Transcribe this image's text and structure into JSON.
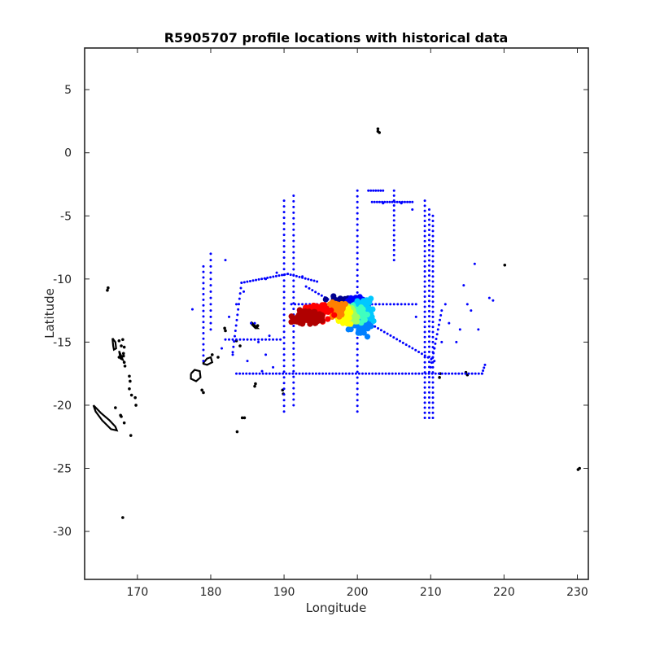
{
  "chart_data": {
    "type": "scatter",
    "title": "R5905707 profile locations with historical data",
    "xlabel": "Longitude",
    "ylabel": "Latitude",
    "xlim": [
      162.8,
      231.5
    ],
    "ylim": [
      -33.8,
      8.3
    ],
    "xticks": [
      170,
      180,
      190,
      200,
      210,
      220,
      230
    ],
    "yticks": [
      5,
      0,
      -5,
      -10,
      -15,
      -20,
      -25,
      -30
    ],
    "grid": false,
    "colors": {
      "historical": "#0000ff",
      "coastline": "#000000"
    },
    "historical_segments": [
      {
        "from": [
          190.0,
          -3.8
        ],
        "to": [
          190.0,
          -20.5
        ],
        "step": 0.45
      },
      {
        "from": [
          191.3,
          -3.4
        ],
        "to": [
          191.3,
          -20.0
        ],
        "step": 0.45
      },
      {
        "from": [
          200.0,
          -3.0
        ],
        "to": [
          200.0,
          -20.5
        ],
        "step": 0.45
      },
      {
        "from": [
          209.2,
          -3.8
        ],
        "to": [
          209.2,
          -21.0
        ],
        "step": 0.4
      },
      {
        "from": [
          209.8,
          -4.5
        ],
        "to": [
          209.8,
          -21.0
        ],
        "step": 0.4
      },
      {
        "from": [
          210.3,
          -5.0
        ],
        "to": [
          210.3,
          -21.0
        ],
        "step": 0.4
      },
      {
        "from": [
          183.5,
          -17.5
        ],
        "to": [
          217.0,
          -17.5
        ],
        "step": 0.45
      },
      {
        "from": [
          217.0,
          -17.5
        ],
        "to": [
          217.4,
          -16.8
        ],
        "step": 0.3
      },
      {
        "from": [
          191.0,
          -12.0
        ],
        "to": [
          208.0,
          -12.0
        ],
        "step": 0.5
      },
      {
        "from": [
          193.0,
          -10.6
        ],
        "to": [
          210.5,
          -16.5
        ],
        "step": 0.45
      },
      {
        "from": [
          184.2,
          -10.3
        ],
        "to": [
          190.5,
          -9.6
        ],
        "step": 0.4
      },
      {
        "from": [
          190.5,
          -9.6
        ],
        "to": [
          194.5,
          -10.2
        ],
        "step": 0.4
      },
      {
        "from": [
          184.2,
          -10.3
        ],
        "to": [
          183.0,
          -15.8
        ],
        "step": 0.45
      },
      {
        "from": [
          182.0,
          -14.8
        ],
        "to": [
          189.5,
          -14.8
        ],
        "step": 0.5
      },
      {
        "from": [
          179.0,
          -9.0
        ],
        "to": [
          179.0,
          -16.5
        ],
        "step": 0.45
      },
      {
        "from": [
          180.0,
          -8.0
        ],
        "to": [
          180.0,
          -14.0
        ],
        "step": 0.5
      },
      {
        "from": [
          201.5,
          -3.0
        ],
        "to": [
          203.5,
          -3.0
        ],
        "step": 0.35
      },
      {
        "from": [
          202.0,
          -3.9
        ],
        "to": [
          207.5,
          -3.9
        ],
        "step": 0.35
      },
      {
        "from": [
          205.0,
          -3.0
        ],
        "to": [
          205.0,
          -8.5
        ],
        "step": 0.4
      },
      {
        "from": [
          210.0,
          -17.0
        ],
        "to": [
          211.5,
          -12.5
        ],
        "step": 0.4
      }
    ],
    "historical_points": [
      [
        177.5,
        -12.4
      ],
      [
        182.0,
        -8.5
      ],
      [
        181.5,
        -15.5
      ],
      [
        182.5,
        -13.0
      ],
      [
        186.0,
        -13.5
      ],
      [
        187.5,
        -10.0
      ],
      [
        187.0,
        -17.3
      ],
      [
        188.0,
        -14.5
      ],
      [
        189.0,
        -9.5
      ],
      [
        192.5,
        -9.8
      ],
      [
        186.5,
        -15.0
      ],
      [
        214.0,
        -14.0
      ],
      [
        213.5,
        -15.0
      ],
      [
        214.5,
        -10.5
      ],
      [
        215.0,
        -12.0
      ],
      [
        215.5,
        -12.5
      ],
      [
        216.5,
        -14.0
      ],
      [
        218.0,
        -11.5
      ],
      [
        218.5,
        -11.7
      ],
      [
        216.0,
        -8.8
      ],
      [
        212.0,
        -12.0
      ],
      [
        212.5,
        -13.5
      ],
      [
        210.5,
        -15.5
      ],
      [
        211.5,
        -15.0
      ],
      [
        208.0,
        -13.0
      ],
      [
        203.5,
        -4.0
      ],
      [
        206.0,
        -4.0
      ],
      [
        207.5,
        -4.5
      ],
      [
        185.5,
        -13.5
      ],
      [
        184.5,
        -11.0
      ],
      [
        183.0,
        -16.0
      ],
      [
        185.0,
        -16.5
      ],
      [
        188.5,
        -17.0
      ],
      [
        187.5,
        -16.0
      ],
      [
        183.5,
        -12.0
      ]
    ],
    "float_clusters": [
      {
        "color": "#000090",
        "center": [
          198.0,
          -11.8
        ],
        "spread": [
          1.6,
          0.35
        ],
        "count": 40
      },
      {
        "color": "#0000ff",
        "center": [
          200.0,
          -11.9
        ],
        "spread": [
          1.3,
          0.4
        ],
        "count": 30
      },
      {
        "color": "#0080ff",
        "center": [
          200.5,
          -13.6
        ],
        "spread": [
          1.2,
          0.7
        ],
        "count": 45
      },
      {
        "color": "#00c8ff",
        "center": [
          201.0,
          -12.5
        ],
        "spread": [
          1.4,
          0.7
        ],
        "count": 50
      },
      {
        "color": "#40ffc0",
        "center": [
          200.2,
          -12.8
        ],
        "spread": [
          1.0,
          0.5
        ],
        "count": 45
      },
      {
        "color": "#a0ff60",
        "center": [
          199.0,
          -12.9
        ],
        "spread": [
          1.0,
          0.6
        ],
        "count": 45
      },
      {
        "color": "#ffff00",
        "center": [
          198.0,
          -12.9
        ],
        "spread": [
          0.9,
          0.6
        ],
        "count": 40
      },
      {
        "color": "#ff8000",
        "center": [
          197.0,
          -12.5
        ],
        "spread": [
          1.0,
          0.6
        ],
        "count": 50
      },
      {
        "color": "#ff0000",
        "center": [
          194.5,
          -12.7
        ],
        "spread": [
          1.7,
          0.6
        ],
        "count": 90
      },
      {
        "color": "#b00000",
        "center": [
          193.2,
          -13.0
        ],
        "spread": [
          1.6,
          0.55
        ],
        "count": 90
      }
    ],
    "coastline_outlines": [
      [
        [
          164.0,
          -20.0
        ],
        [
          165.0,
          -20.6
        ],
        [
          166.2,
          -21.2
        ],
        [
          167.0,
          -21.7
        ],
        [
          167.2,
          -22.0
        ],
        [
          166.4,
          -21.9
        ],
        [
          165.2,
          -21.2
        ],
        [
          164.3,
          -20.5
        ],
        [
          164.0,
          -20.0
        ]
      ],
      [
        [
          177.3,
          -17.5
        ],
        [
          177.8,
          -17.2
        ],
        [
          178.5,
          -17.3
        ],
        [
          178.6,
          -17.8
        ],
        [
          178.0,
          -18.1
        ],
        [
          177.3,
          -17.9
        ],
        [
          177.3,
          -17.5
        ]
      ],
      [
        [
          178.9,
          -16.7
        ],
        [
          179.5,
          -16.3
        ],
        [
          180.0,
          -16.2
        ],
        [
          180.2,
          -16.6
        ],
        [
          179.5,
          -16.8
        ],
        [
          178.9,
          -16.7
        ]
      ],
      [
        [
          166.6,
          -14.7
        ],
        [
          166.7,
          -15.3
        ],
        [
          166.8,
          -15.6
        ],
        [
          167.1,
          -15.5
        ],
        [
          167.0,
          -15.0
        ],
        [
          166.6,
          -14.7
        ]
      ],
      [
        [
          167.5,
          -15.7
        ],
        [
          167.8,
          -16.1
        ],
        [
          168.0,
          -16.4
        ],
        [
          167.7,
          -16.3
        ],
        [
          167.5,
          -15.7
        ]
      ],
      [
        [
          185.5,
          -13.4
        ],
        [
          185.9,
          -13.6
        ],
        [
          186.4,
          -13.9
        ],
        [
          186.1,
          -13.9
        ],
        [
          185.6,
          -13.6
        ],
        [
          185.5,
          -13.4
        ]
      ]
    ],
    "coastline_points": [
      [
        165.9,
        -10.9
      ],
      [
        166.0,
        -10.7
      ],
      [
        167.5,
        -14.9
      ],
      [
        168.0,
        -14.8
      ],
      [
        167.8,
        -15.3
      ],
      [
        168.2,
        -15.4
      ],
      [
        168.1,
        -15.9
      ],
      [
        168.1,
        -16.1
      ],
      [
        167.5,
        -16.2
      ],
      [
        168.2,
        -16.6
      ],
      [
        168.3,
        -16.9
      ],
      [
        168.9,
        -17.7
      ],
      [
        169.0,
        -18.1
      ],
      [
        168.9,
        -18.7
      ],
      [
        169.2,
        -19.2
      ],
      [
        169.7,
        -19.4
      ],
      [
        169.8,
        -20.0
      ],
      [
        167.0,
        -20.2
      ],
      [
        167.7,
        -20.8
      ],
      [
        167.8,
        -20.9
      ],
      [
        168.2,
        -21.4
      ],
      [
        169.1,
        -22.4
      ],
      [
        168.0,
        -28.9
      ],
      [
        179.0,
        -19.0
      ],
      [
        178.8,
        -18.8
      ],
      [
        181.0,
        -16.2
      ],
      [
        180.2,
        -16.0
      ],
      [
        181.9,
        -13.9
      ],
      [
        182.0,
        -14.1
      ],
      [
        183.5,
        -14.9
      ],
      [
        184.0,
        -15.3
      ],
      [
        186.1,
        -18.3
      ],
      [
        186.0,
        -18.5
      ],
      [
        184.3,
        -21.0
      ],
      [
        184.6,
        -21.0
      ],
      [
        183.6,
        -22.1
      ],
      [
        186.4,
        -13.7
      ],
      [
        189.8,
        -18.8
      ],
      [
        189.9,
        -19.1
      ],
      [
        202.8,
        1.9
      ],
      [
        203.0,
        1.6
      ],
      [
        202.8,
        1.7
      ],
      [
        220.1,
        -8.9
      ],
      [
        214.8,
        -17.4
      ],
      [
        215.0,
        -17.6
      ],
      [
        211.3,
        -17.5
      ],
      [
        211.2,
        -17.8
      ],
      [
        230.1,
        -25.1
      ],
      [
        230.3,
        -25.0
      ]
    ]
  }
}
